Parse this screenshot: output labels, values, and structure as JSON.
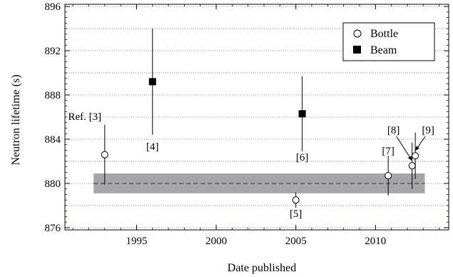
{
  "chart_data": {
    "type": "scatter",
    "xlabel": "Date published",
    "ylabel": "Neutron lifetime (s)",
    "xlim": [
      1990.5,
      2014.6
    ],
    "ylim": [
      875.8,
      896.2
    ],
    "xticks": [
      1995,
      2000,
      2005,
      2010
    ],
    "xtick_labels": [
      "1995",
      "2000",
      "2005",
      "2010"
    ],
    "yticks": [
      876,
      880,
      884,
      888,
      892,
      896
    ],
    "ytick_labels": [
      "876",
      "880",
      "884",
      "888",
      "892",
      "896"
    ],
    "grid": "horizontal dotted lines every 2 s",
    "legend_position": "top-right",
    "band": {
      "x_start": 1992.3,
      "x_end": 2013.1,
      "y_low": 879.1,
      "y_high": 880.9,
      "center": 880.0,
      "color": "#a6a6a6"
    },
    "series": [
      {
        "name": "Bottle",
        "marker": "open-circle",
        "points": [
          {
            "x": 1993.0,
            "y": 882.6,
            "err": 2.7,
            "label": "Ref. [3]"
          },
          {
            "x": 2005.0,
            "y": 878.5,
            "err": 0.7,
            "label": "[5]"
          },
          {
            "x": 2010.8,
            "y": 880.7,
            "err": 1.8,
            "label": "[7]"
          },
          {
            "x": 2012.3,
            "y": 881.6,
            "err": 2.1,
            "label": "[8]"
          },
          {
            "x": 2012.5,
            "y": 882.5,
            "err": 2.1,
            "label": "[9]"
          }
        ]
      },
      {
        "name": "Beam",
        "marker": "filled-square",
        "points": [
          {
            "x": 1996.0,
            "y": 889.2,
            "err": 4.8,
            "label": "[4]"
          },
          {
            "x": 2005.4,
            "y": 886.3,
            "err": 3.4,
            "label": "[6]"
          }
        ]
      }
    ]
  }
}
